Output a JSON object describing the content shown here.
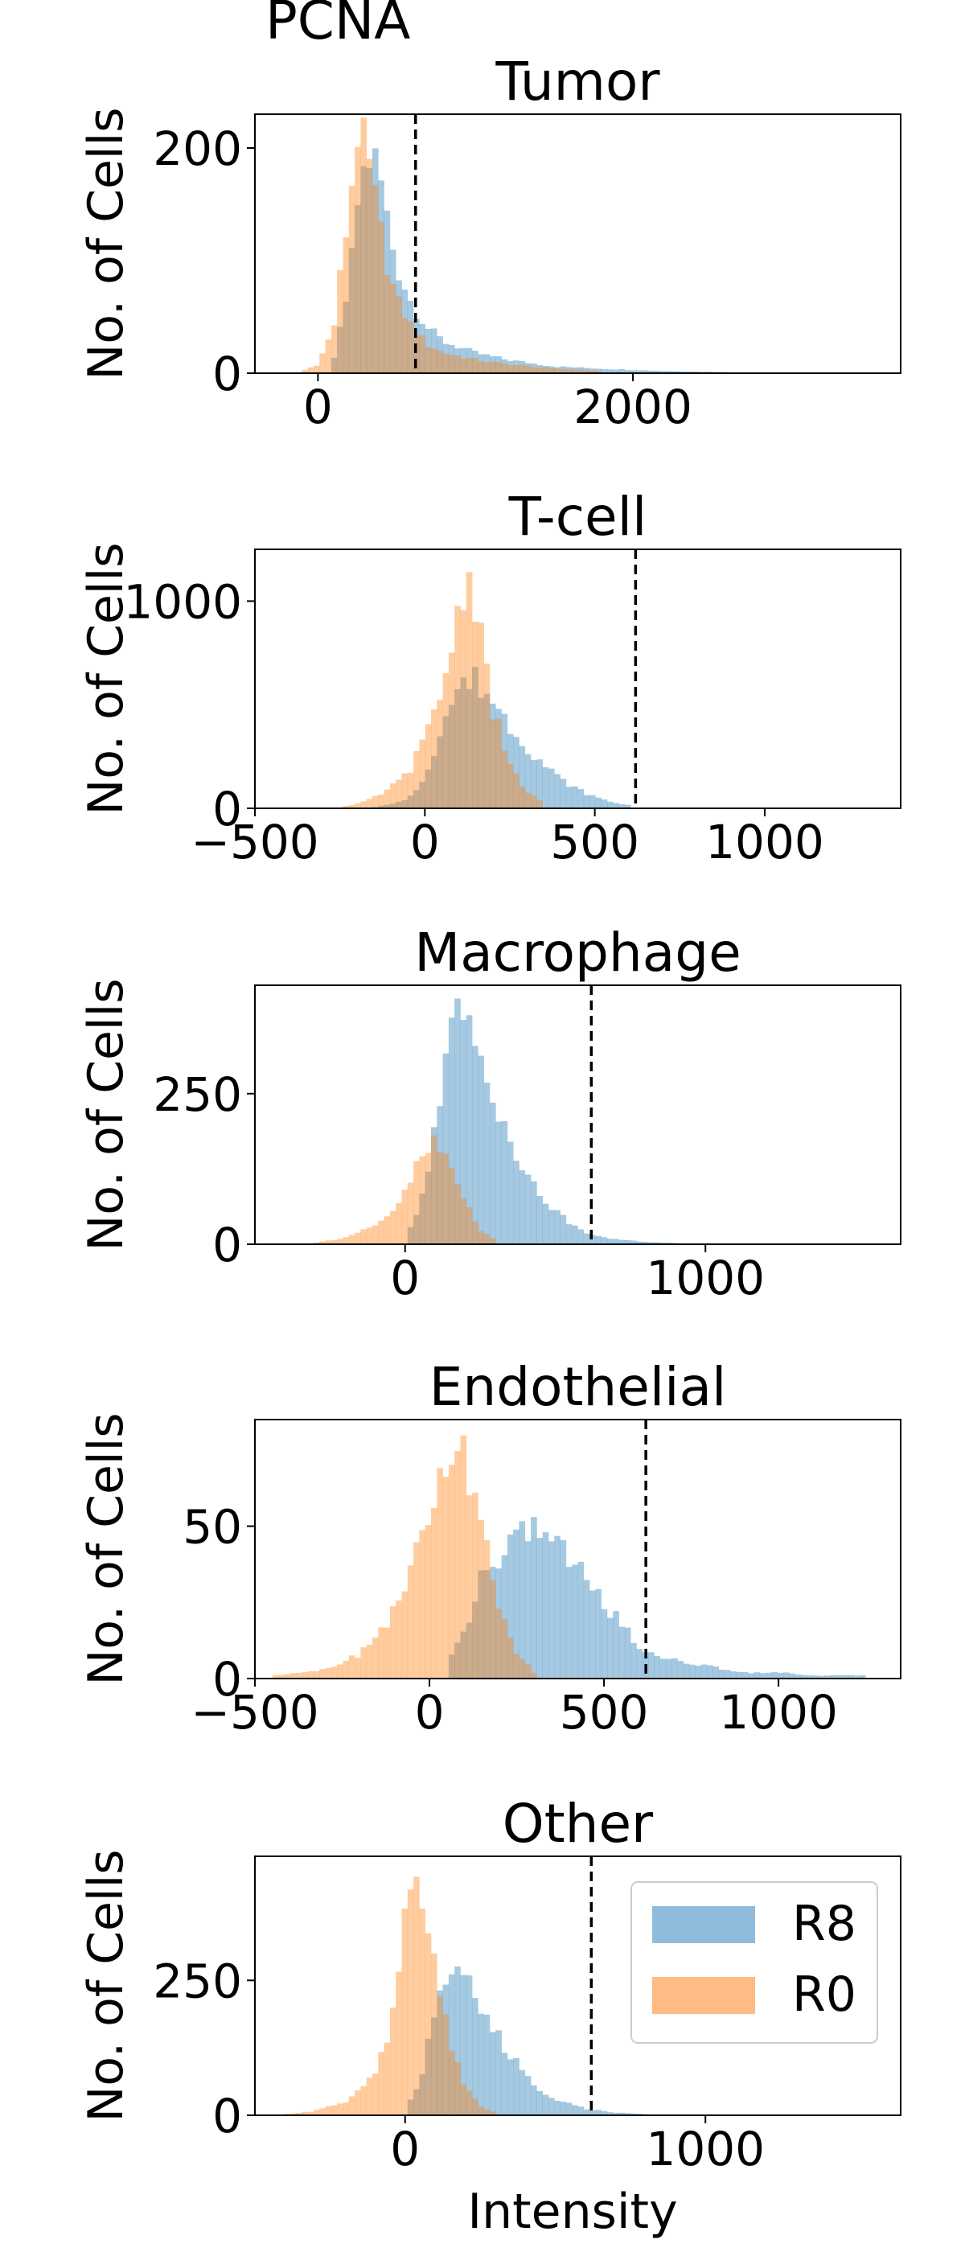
{
  "figure": {
    "title": "PCNA",
    "xlabel": "Intensity"
  },
  "legend": {
    "location": "upper right of last panel",
    "entries": [
      {
        "label": "R8",
        "color": "#8fbcdc"
      },
      {
        "label": "R0",
        "color": "#ffbb84"
      }
    ]
  },
  "colors": {
    "R8": "#1f77b4",
    "R0": "#ff7f0e",
    "alpha": 0.4,
    "threshold_line": "#000000"
  },
  "chart_data": [
    {
      "type": "histogram",
      "title": "Tumor",
      "ylabel": "No. of Cells",
      "xlim": [
        -400,
        3700
      ],
      "ylim": [
        0,
        230
      ],
      "xticks": [
        0,
        2000
      ],
      "yticks": [
        0,
        200
      ],
      "threshold": 620,
      "series": [
        {
          "name": "R8",
          "x": [
            100,
            200,
            250,
            300,
            350,
            400,
            450,
            500,
            600,
            700,
            800,
            1000,
            1200,
            1500,
            1800,
            2200,
            2600
          ],
          "y": [
            10,
            80,
            150,
            185,
            195,
            170,
            130,
            95,
            60,
            40,
            28,
            18,
            12,
            6,
            4,
            2,
            1
          ]
        },
        {
          "name": "R0",
          "x": [
            -100,
            0,
            100,
            200,
            250,
            300,
            350,
            400,
            450,
            500,
            600,
            700,
            800,
            1000,
            1200,
            1500,
            1800
          ],
          "y": [
            2,
            8,
            40,
            150,
            215,
            200,
            165,
            125,
            90,
            65,
            40,
            25,
            18,
            12,
            8,
            4,
            2
          ]
        }
      ]
    },
    {
      "type": "histogram",
      "title": "T-cell",
      "ylabel": "No. of Cells",
      "xlim": [
        -500,
        1400
      ],
      "ylim": [
        0,
        1250
      ],
      "xticks": [
        -500,
        0,
        500,
        1000
      ],
      "yticks": [
        0,
        1000
      ],
      "threshold": 620,
      "series": [
        {
          "name": "R8",
          "x": [
            -150,
            -50,
            0,
            50,
            100,
            150,
            200,
            250,
            300,
            350,
            400,
            450,
            500,
            550,
            600
          ],
          "y": [
            5,
            40,
            150,
            400,
            590,
            620,
            520,
            400,
            300,
            210,
            140,
            90,
            55,
            30,
            15
          ]
        },
        {
          "name": "R0",
          "x": [
            -250,
            -200,
            -150,
            -100,
            -50,
            0,
            50,
            100,
            125,
            150,
            175,
            200,
            250,
            300,
            350
          ],
          "y": [
            5,
            20,
            50,
            100,
            170,
            330,
            570,
            950,
            1160,
            1000,
            750,
            480,
            200,
            80,
            25
          ]
        }
      ]
    },
    {
      "type": "histogram",
      "title": "Macrophage",
      "ylabel": "No. of Cells",
      "xlim": [
        -500,
        1650
      ],
      "ylim": [
        0,
        430
      ],
      "xticks": [
        0,
        1000
      ],
      "yticks": [
        0,
        250
      ],
      "threshold": 620,
      "series": [
        {
          "name": "R8",
          "x": [
            0,
            50,
            100,
            150,
            200,
            250,
            300,
            350,
            400,
            450,
            500,
            550,
            600,
            700,
            800,
            900
          ],
          "y": [
            10,
            60,
            200,
            390,
            360,
            310,
            240,
            180,
            120,
            80,
            55,
            35,
            20,
            8,
            4,
            2
          ]
        },
        {
          "name": "R0",
          "x": [
            -300,
            -200,
            -100,
            -50,
            0,
            50,
            100,
            150,
            200,
            250,
            300
          ],
          "y": [
            3,
            10,
            30,
            50,
            85,
            140,
            170,
            130,
            70,
            25,
            8
          ]
        }
      ]
    },
    {
      "type": "histogram",
      "title": "Endothelial",
      "ylabel": "No. of Cells",
      "xlim": [
        -500,
        1350
      ],
      "ylim": [
        0,
        85
      ],
      "xticks": [
        -500,
        0,
        500,
        1000
      ],
      "yticks": [
        0,
        50
      ],
      "threshold": 620,
      "series": [
        {
          "name": "R8",
          "x": [
            50,
            100,
            150,
            200,
            250,
            300,
            350,
            400,
            450,
            500,
            550,
            600,
            700,
            800,
            900,
            1000,
            1100,
            1250
          ],
          "y": [
            5,
            15,
            35,
            40,
            45,
            52,
            45,
            40,
            33,
            25,
            18,
            10,
            6,
            4,
            2,
            2,
            1,
            1
          ]
        },
        {
          "name": "R0",
          "x": [
            -450,
            -300,
            -200,
            -150,
            -100,
            -50,
            0,
            50,
            75,
            100,
            125,
            150,
            175,
            200,
            250,
            300
          ],
          "y": [
            1,
            3,
            8,
            15,
            22,
            38,
            52,
            70,
            80,
            72,
            60,
            48,
            35,
            22,
            8,
            2
          ]
        }
      ]
    },
    {
      "type": "histogram",
      "title": "Other",
      "ylabel": "No. of Cells",
      "xlim": [
        -500,
        1650
      ],
      "ylim": [
        0,
        480
      ],
      "xticks": [
        0,
        1000
      ],
      "yticks": [
        0,
        250
      ],
      "threshold": 620,
      "legend": {
        "location": "upper right"
      },
      "series": [
        {
          "name": "R8",
          "x": [
            0,
            50,
            100,
            150,
            200,
            250,
            300,
            350,
            400,
            450,
            500,
            600,
            700,
            800
          ],
          "y": [
            10,
            60,
            190,
            300,
            250,
            200,
            150,
            110,
            75,
            50,
            30,
            12,
            5,
            2
          ]
        },
        {
          "name": "R0",
          "x": [
            -400,
            -300,
            -200,
            -100,
            -50,
            0,
            25,
            50,
            75,
            100,
            150,
            200,
            250,
            300
          ],
          "y": [
            2,
            8,
            25,
            80,
            170,
            350,
            440,
            420,
            350,
            260,
            130,
            55,
            18,
            5
          ]
        }
      ]
    }
  ]
}
